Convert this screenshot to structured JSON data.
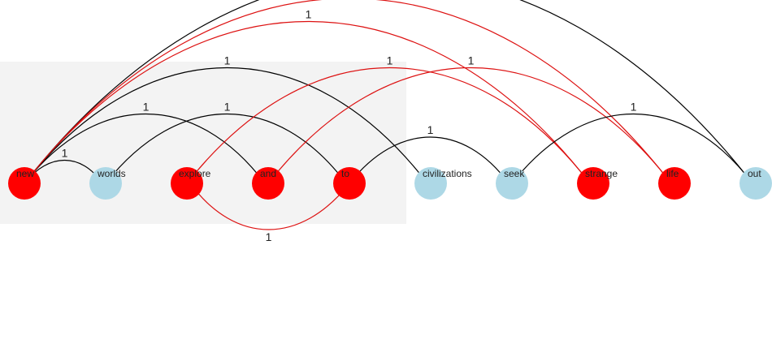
{
  "colors": {
    "highlight_node": "#ff0000",
    "normal_node": "#add8e6",
    "highlight_edge": "#dd1111",
    "normal_edge": "#000000",
    "selection_box": "#f3f3f3"
  },
  "nodes": [
    {
      "id": "new",
      "label": "new",
      "highlighted": true
    },
    {
      "id": "worlds",
      "label": "worlds",
      "highlighted": false
    },
    {
      "id": "explore",
      "label": "explore",
      "highlighted": true
    },
    {
      "id": "and",
      "label": "and",
      "highlighted": true
    },
    {
      "id": "to",
      "label": "to",
      "highlighted": true
    },
    {
      "id": "civilizations",
      "label": "civilizations",
      "highlighted": false
    },
    {
      "id": "seek",
      "label": "seek",
      "highlighted": false
    },
    {
      "id": "strange",
      "label": "strange",
      "highlighted": true
    },
    {
      "id": "life",
      "label": "life",
      "highlighted": true
    },
    {
      "id": "out",
      "label": "out",
      "highlighted": false
    }
  ],
  "edges": [
    {
      "source": "new",
      "target": "worlds",
      "weight": "1",
      "highlighted": false
    },
    {
      "source": "new",
      "target": "and",
      "weight": "1",
      "highlighted": false
    },
    {
      "source": "new",
      "target": "out",
      "weight": "1",
      "highlighted": false
    },
    {
      "source": "new",
      "target": "strange",
      "weight": "1",
      "highlighted": true
    },
    {
      "source": "new",
      "target": "civilizations",
      "weight": "1",
      "highlighted": false
    },
    {
      "source": "new",
      "target": "life",
      "weight": "1",
      "highlighted": true
    },
    {
      "source": "worlds",
      "target": "to",
      "weight": "1",
      "highlighted": false
    },
    {
      "source": "to",
      "target": "explore",
      "weight": "1",
      "highlighted": true
    },
    {
      "source": "and",
      "target": "life",
      "weight": "1",
      "highlighted": true
    },
    {
      "source": "explore",
      "target": "strange",
      "weight": "1",
      "highlighted": true
    },
    {
      "source": "to",
      "target": "seek",
      "weight": "1",
      "highlighted": false
    },
    {
      "source": "seek",
      "target": "out",
      "weight": "1",
      "highlighted": false
    }
  ]
}
